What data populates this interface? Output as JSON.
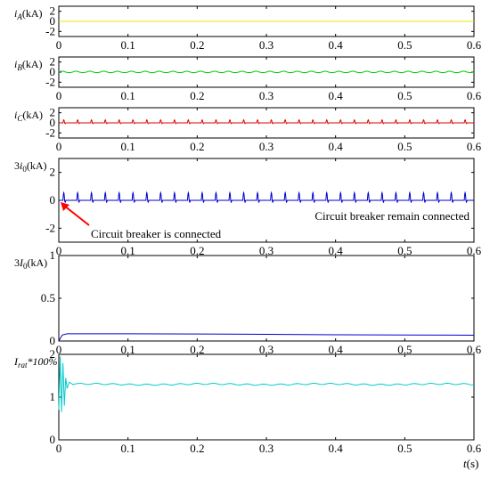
{
  "chart_data": [
    {
      "type": "line",
      "ylabel": "iA(kA)",
      "ylabel_parts": [
        {
          "t": "i",
          "i": true
        },
        {
          "t": "A",
          "sub": true,
          "i": true
        },
        {
          "t": "(kA)"
        }
      ],
      "xlim": [
        0,
        0.6
      ],
      "ylim": [
        -3,
        3
      ],
      "xticks": [
        "0",
        "0.1",
        "0.2",
        "0.3",
        "0.4",
        "0.5",
        "0.6"
      ],
      "yticks": [
        "2",
        "0",
        "-2"
      ],
      "ytick_values": [
        2,
        0,
        -2
      ],
      "series": [
        {
          "color": "#e8e800",
          "pattern": "flat",
          "level": 0,
          "amp": 0
        }
      ]
    },
    {
      "type": "line",
      "ylabel": "iB(kA)",
      "ylabel_parts": [
        {
          "t": "i",
          "i": true
        },
        {
          "t": "B",
          "sub": true,
          "i": true
        },
        {
          "t": "(kA)"
        }
      ],
      "xlim": [
        0,
        0.6
      ],
      "ylim": [
        -3,
        3
      ],
      "xticks": [
        "0",
        "0.1",
        "0.2",
        "0.3",
        "0.4",
        "0.5",
        "0.6"
      ],
      "yticks": [
        "2",
        "0",
        "-2"
      ],
      "ytick_values": [
        2,
        0,
        -2
      ],
      "series": [
        {
          "color": "#00cc00",
          "pattern": "ripple",
          "level": 0,
          "amp": 0.3
        }
      ]
    },
    {
      "type": "line",
      "ylabel": "iC(kA)",
      "ylabel_parts": [
        {
          "t": "i",
          "i": true
        },
        {
          "t": "C",
          "sub": true,
          "i": true
        },
        {
          "t": "(kA)"
        }
      ],
      "xlim": [
        0,
        0.6
      ],
      "ylim": [
        -3,
        3
      ],
      "xticks": [
        "0",
        "0.1",
        "0.2",
        "0.3",
        "0.4",
        "0.5",
        "0.6"
      ],
      "yticks": [
        "2",
        "0",
        "-2"
      ],
      "ytick_values": [
        2,
        0,
        -2
      ],
      "series": [
        {
          "color": "#dd0000",
          "pattern": "spike",
          "level": 0,
          "amp": 0.6
        }
      ]
    },
    {
      "type": "line",
      "ylabel": "3i0(kA)",
      "ylabel_parts": [
        {
          "t": "3"
        },
        {
          "t": "i",
          "i": true
        },
        {
          "t": "0",
          "sub": true
        },
        {
          "t": "(kA)"
        }
      ],
      "xlim": [
        0,
        0.6
      ],
      "ylim": [
        -3,
        3
      ],
      "xticks": [
        "0",
        "0.1",
        "0.2",
        "0.3",
        "0.4",
        "0.5",
        "0.6"
      ],
      "yticks": [
        "2",
        "0",
        "-2"
      ],
      "ytick_values": [
        2,
        0,
        -2
      ],
      "series": [
        {
          "color": "#0000cc",
          "pattern": "spike",
          "level": 0,
          "amp": 0.55
        }
      ],
      "annotations": [
        {
          "text": "Circuit breaker is connected",
          "arrow_to": [
            0,
            0
          ],
          "color": "#ff0000"
        },
        {
          "text": "Circuit breaker remain connected"
        }
      ]
    },
    {
      "type": "line",
      "ylabel": "3I0(kA)",
      "ylabel_parts": [
        {
          "t": "3"
        },
        {
          "t": "I",
          "i": true
        },
        {
          "t": "0",
          "sub": true
        },
        {
          "t": "(kA)"
        }
      ],
      "xlim": [
        0,
        0.6
      ],
      "ylim": [
        0,
        1
      ],
      "xticks": [
        "0",
        "0.1",
        "0.2",
        "0.3",
        "0.4",
        "0.5",
        "0.6"
      ],
      "yticks": [
        "1",
        "0.5",
        "0"
      ],
      "ytick_values": [
        1,
        0.5,
        0
      ],
      "series": [
        {
          "color": "#0000cc",
          "pattern": "decay",
          "x": [
            0,
            0.005,
            0.012,
            0.1,
            0.2,
            0.3,
            0.4,
            0.5,
            0.6
          ],
          "y": [
            0,
            0.07,
            0.085,
            0.085,
            0.082,
            0.078,
            0.073,
            0.07,
            0.068
          ]
        }
      ]
    },
    {
      "type": "line",
      "ylabel": "Irat*100%",
      "ylabel_parts": [
        {
          "t": "I",
          "i": true
        },
        {
          "t": "rat",
          "sub": true,
          "i": true
        },
        {
          "t": "*100%",
          "i": true
        }
      ],
      "xlim": [
        0,
        0.6
      ],
      "ylim": [
        0,
        2
      ],
      "xticks": [
        "0",
        "0.1",
        "0.2",
        "0.3",
        "0.4",
        "0.5",
        "0.6"
      ],
      "yticks": [
        "2",
        "1",
        "0"
      ],
      "ytick_values": [
        2,
        1,
        0
      ],
      "xlabel": "t(s)",
      "xlabel_parts": [
        {
          "t": "t",
          "i": true
        },
        {
          "t": "(s)"
        }
      ],
      "series": [
        {
          "color": "#00cccc",
          "pattern": "osc-steady",
          "level": 1.3,
          "x": [
            0,
            0.002,
            0.004,
            0.006,
            0.008,
            0.01,
            0.012,
            0.015,
            0.02
          ],
          "y": [
            0.7,
            1.95,
            0.65,
            1.8,
            0.8,
            1.45,
            1.2,
            1.35,
            1.3
          ]
        }
      ]
    }
  ]
}
